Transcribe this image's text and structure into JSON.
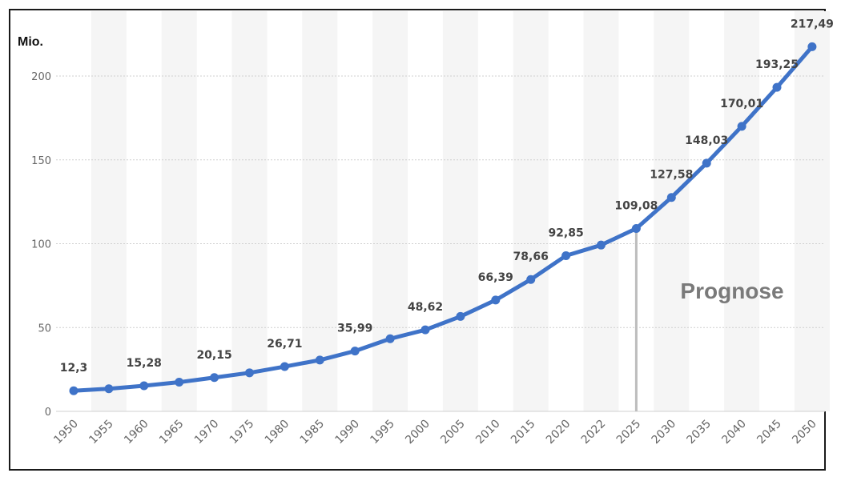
{
  "chart_data": {
    "type": "line",
    "ylabel": "Mio.",
    "ylim": [
      0,
      230
    ],
    "yticks": [
      0,
      50,
      100,
      150,
      200
    ],
    "grid": true,
    "legend": "none",
    "color": "#3f73c8",
    "x": [
      "1950",
      "1955",
      "1960",
      "1965",
      "1970",
      "1975",
      "1980",
      "1985",
      "1990",
      "1995",
      "2000",
      "2005",
      "2010",
      "2015",
      "2020",
      "2022",
      "2025",
      "2030",
      "2035",
      "2040",
      "2045",
      "2050"
    ],
    "values": [
      12.3,
      13.5,
      15.28,
      17.4,
      20.15,
      23.0,
      26.71,
      30.6,
      35.99,
      43.3,
      48.62,
      56.6,
      66.39,
      78.66,
      92.85,
      99.2,
      109.08,
      127.58,
      148.03,
      170.01,
      193.25,
      217.49
    ],
    "data_labels": [
      "12,3",
      "",
      "15,28",
      "",
      "20,15",
      "",
      "26,71",
      "",
      "35,99",
      "",
      "48,62",
      "",
      "66,39",
      "78,66",
      "92,85",
      "",
      "109,08",
      "127,58",
      "148,03",
      "170,01",
      "193,25",
      "217,49"
    ],
    "forecast_from": "2025",
    "annotation": "Prognose"
  }
}
